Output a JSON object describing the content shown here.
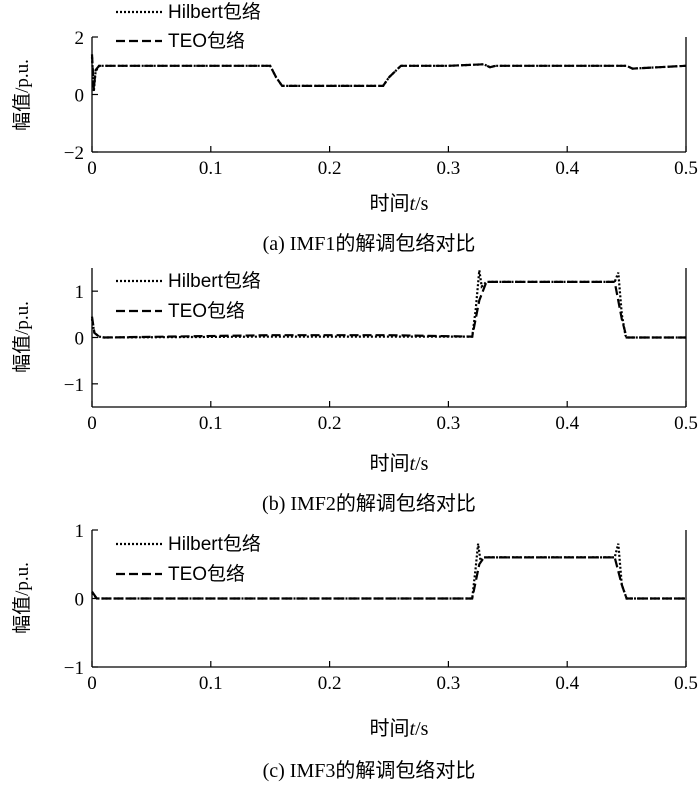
{
  "chart_data": [
    {
      "type": "line",
      "caption": "(a) IMF1的解调包络对比",
      "ylabel": "幅值/p.u.",
      "xlabel_main": "时间",
      "xlabel_var": "t",
      "xlabel_unit": "/s",
      "xlim": [
        0,
        0.5
      ],
      "ylim": [
        -2,
        2
      ],
      "xticks": [
        "0",
        "0.1",
        "0.2",
        "0.3",
        "0.4",
        "0.5"
      ],
      "yticks": [
        "−2",
        "0",
        "2"
      ],
      "ytick_values": [
        -2,
        0,
        2
      ],
      "legend": [
        "Hilbert包络",
        "TEO包络"
      ],
      "series": [
        {
          "name": "Hilbert包络",
          "x": [
            0,
            0.0015,
            0.003,
            0.006,
            0.01,
            0.02,
            0.1,
            0.15,
            0.155,
            0.16,
            0.2,
            0.245,
            0.25,
            0.26,
            0.3,
            0.33,
            0.335,
            0.34,
            0.4,
            0.45,
            0.455,
            0.5
          ],
          "y": [
            1.3,
            0.1,
            0.8,
            1.0,
            1.0,
            1.0,
            1.0,
            1.0,
            0.6,
            0.3,
            0.3,
            0.3,
            0.6,
            1.0,
            1.0,
            1.05,
            0.95,
            1.0,
            1.0,
            1.0,
            0.9,
            1.0
          ]
        },
        {
          "name": "TEO包络",
          "x": [
            0,
            0.0015,
            0.003,
            0.006,
            0.01,
            0.02,
            0.1,
            0.15,
            0.155,
            0.16,
            0.2,
            0.245,
            0.25,
            0.26,
            0.3,
            0.33,
            0.335,
            0.34,
            0.4,
            0.45,
            0.455,
            0.5
          ],
          "y": [
            1.4,
            0.2,
            0.85,
            1.0,
            1.0,
            1.0,
            1.0,
            1.0,
            0.6,
            0.3,
            0.3,
            0.3,
            0.6,
            1.0,
            1.0,
            1.05,
            0.95,
            1.0,
            1.0,
            1.0,
            0.9,
            1.0
          ]
        }
      ]
    },
    {
      "type": "line",
      "caption": "(b) IMF2的解调包络对比",
      "ylabel": "幅值/p.u.",
      "xlabel_main": "时间",
      "xlabel_var": "t",
      "xlabel_unit": "/s",
      "xlim": [
        0,
        0.5
      ],
      "ylim": [
        -1.5,
        1.5
      ],
      "xticks": [
        "0",
        "0.1",
        "0.2",
        "0.3",
        "0.4",
        "0.5"
      ],
      "yticks": [
        "−1",
        "0",
        "1"
      ],
      "ytick_values": [
        -1,
        0,
        1
      ],
      "legend": [
        "Hilbert包络",
        "TEO包络"
      ],
      "series": [
        {
          "name": "Hilbert包络",
          "x": [
            0,
            0.002,
            0.006,
            0.01,
            0.15,
            0.25,
            0.32,
            0.323,
            0.326,
            0.328,
            0.332,
            0.44,
            0.443,
            0.446,
            0.449,
            0.45,
            0.5
          ],
          "y": [
            0.4,
            0.1,
            0.02,
            0.0,
            0.02,
            0.02,
            0.02,
            0.6,
            1.45,
            1.1,
            1.2,
            1.2,
            1.4,
            0.5,
            0.05,
            0.0,
            0.0
          ]
        },
        {
          "name": "TEO包络",
          "x": [
            0,
            0.002,
            0.006,
            0.01,
            0.15,
            0.25,
            0.32,
            0.326,
            0.332,
            0.44,
            0.446,
            0.45,
            0.5
          ],
          "y": [
            0.45,
            0.1,
            0.02,
            0.0,
            0.05,
            0.05,
            0.02,
            0.8,
            1.2,
            1.2,
            0.4,
            0.0,
            0.0
          ]
        }
      ]
    },
    {
      "type": "line",
      "caption": "(c) IMF3的解调包络对比",
      "ylabel": "幅值/p.u.",
      "xlabel_main": "时间",
      "xlabel_var": "t",
      "xlabel_unit": "/s",
      "xlim": [
        0,
        0.5
      ],
      "ylim": [
        -1,
        1
      ],
      "xticks": [
        "0",
        "0.1",
        "0.2",
        "0.3",
        "0.4",
        "0.5"
      ],
      "yticks": [
        "−1",
        "0",
        "1"
      ],
      "ytick_values": [
        -1,
        0,
        1
      ],
      "legend": [
        "Hilbert包络",
        "TEO包络"
      ],
      "series": [
        {
          "name": "Hilbert包络",
          "x": [
            0,
            0.004,
            0.01,
            0.32,
            0.323,
            0.325,
            0.327,
            0.33,
            0.44,
            0.443,
            0.446,
            0.45,
            0.5
          ],
          "y": [
            0.08,
            0.0,
            0.0,
            0.0,
            0.45,
            0.8,
            0.55,
            0.6,
            0.6,
            0.8,
            0.2,
            0.0,
            0.0
          ]
        },
        {
          "name": "TEO包络",
          "x": [
            0,
            0.004,
            0.01,
            0.32,
            0.326,
            0.33,
            0.44,
            0.446,
            0.45,
            0.5
          ],
          "y": [
            0.1,
            0.0,
            0.0,
            0.0,
            0.5,
            0.6,
            0.6,
            0.2,
            0.0,
            0.0
          ]
        }
      ]
    }
  ]
}
